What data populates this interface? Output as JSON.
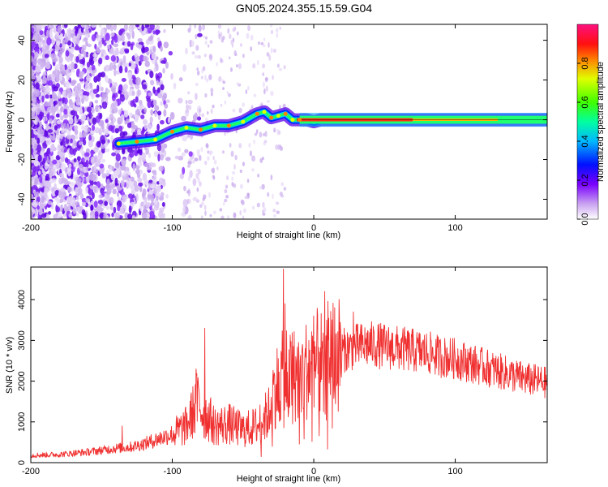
{
  "figure_title": "GN05.2024.355.15.59.G04",
  "colors": {
    "snr_line": "#f03030",
    "axes": "#000000"
  },
  "chart_data": [
    {
      "type": "heatmap",
      "xlabel": "Height of straight line (km)",
      "ylabel": "Frequency (Hz)",
      "xlim": [
        -200,
        165
      ],
      "ylim": [
        -50,
        48
      ],
      "x_ticks": [
        -200,
        -100,
        0,
        100
      ],
      "y_ticks": [
        -40,
        -20,
        0,
        20,
        40
      ],
      "grid": false,
      "ridge": {
        "x": [
          -138,
          -125,
          -112,
          -100,
          -90,
          -80,
          -70,
          -60,
          -50,
          -40,
          -35,
          -30,
          -25,
          -20,
          -15,
          -10,
          -5,
          0,
          5,
          10,
          20,
          40,
          60,
          80,
          100,
          120,
          140,
          165
        ],
        "y": [
          -12,
          -11,
          -10,
          -6,
          -4,
          -5,
          -3,
          -3,
          -1,
          3,
          4,
          1,
          2,
          3,
          0,
          0,
          0,
          -1,
          0,
          0,
          0,
          0,
          0,
          0,
          0,
          0,
          0,
          0
        ]
      },
      "colorbar": {
        "label": "Normalized spectral amplitude",
        "range": [
          0,
          1
        ],
        "ticks": [
          0.0,
          0.2,
          0.4,
          0.6,
          0.8
        ],
        "colormap": "white-purple-blue-cyan-green-yellow-orange-red-pink"
      }
    },
    {
      "type": "line",
      "xlabel": "Height of straight line (km)",
      "ylabel": "SNR (10 * v/v)",
      "xlim": [
        -200,
        165
      ],
      "ylim": [
        0,
        4800
      ],
      "x_ticks": [
        -200,
        -100,
        0,
        100
      ],
      "y_ticks": [
        0,
        1000,
        2000,
        3000,
        4000
      ],
      "grid": false,
      "series": [
        {
          "x": [
            -200,
            -180,
            -160,
            -140,
            -130,
            -120,
            -110,
            -100,
            -90,
            -82,
            -78,
            -74,
            -70,
            -60,
            -50,
            -40,
            -32,
            -28,
            -22,
            -20,
            -19,
            -18,
            -16,
            -10,
            -5,
            0,
            5,
            8,
            10,
            15,
            20,
            30,
            40,
            50,
            60,
            70,
            80,
            90,
            100,
            110,
            120,
            130,
            140,
            150,
            160,
            165
          ],
          "values": [
            180,
            200,
            260,
            350,
            380,
            460,
            580,
            700,
            900,
            1500,
            1200,
            1100,
            900,
            950,
            800,
            900,
            1200,
            1800,
            2100,
            1500,
            2600,
            1800,
            2200,
            2100,
            2300,
            2400,
            2500,
            1700,
            2800,
            2600,
            2750,
            2850,
            2900,
            2850,
            2800,
            2750,
            2700,
            2600,
            2550,
            2450,
            2350,
            2250,
            2150,
            2050,
            2000,
            1950
          ]
        }
      ],
      "spikes": [
        {
          "x": -135,
          "value": 900
        },
        {
          "x": -83,
          "value": 2300
        },
        {
          "x": -77,
          "value": 3300
        },
        {
          "x": -21,
          "value": 4750
        },
        {
          "x": -20,
          "value": 3900
        },
        {
          "x": 8,
          "value": 4200
        },
        {
          "x": 28,
          "value": 3700
        }
      ]
    }
  ]
}
